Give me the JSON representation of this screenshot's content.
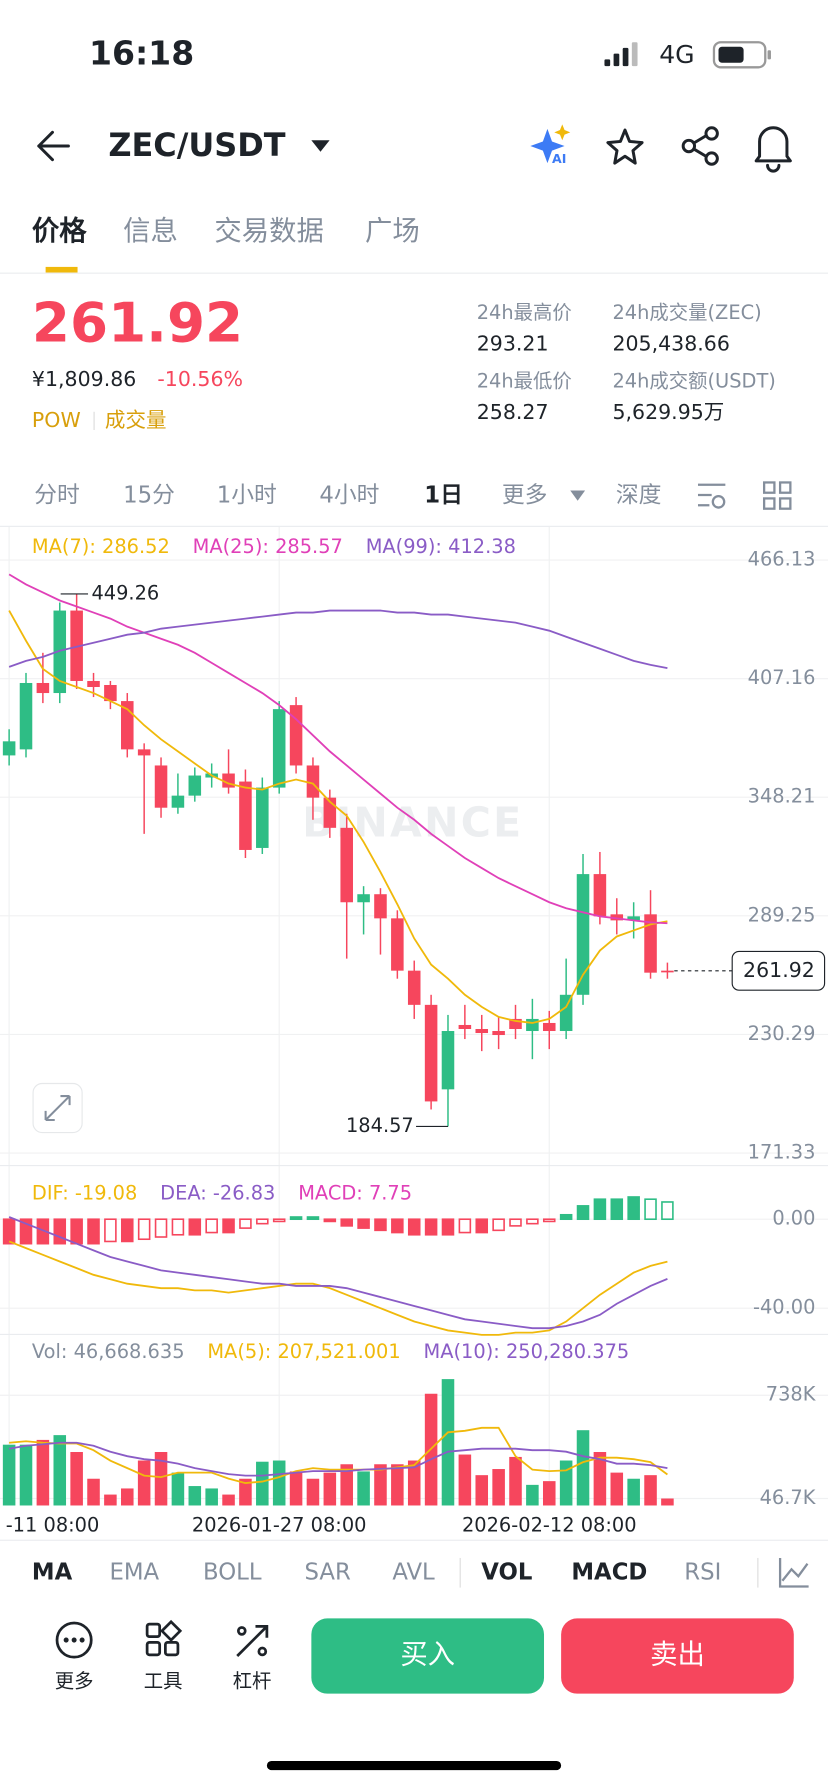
{
  "status": {
    "time": "16:18",
    "network": "4G"
  },
  "header": {
    "pair": "ZEC/USDT"
  },
  "tabs": [
    "价格",
    "信息",
    "交易数据",
    "广场"
  ],
  "ticker": {
    "price": "261.92",
    "cny": "¥1,809.86",
    "change": "-10.56%",
    "tags": [
      "POW",
      "成交量"
    ],
    "stats": [
      {
        "label": "24h最高价",
        "value": "293.21"
      },
      {
        "label": "24h成交量(ZEC)",
        "value": "205,438.66"
      },
      {
        "label": "24h最低价",
        "value": "258.27"
      },
      {
        "label": "24h成交额(USDT)",
        "value": "5,629.95万"
      }
    ]
  },
  "intervals": [
    "分时",
    "15分",
    "1小时",
    "4小时",
    "1日",
    "更多",
    "深度"
  ],
  "chart_data": {
    "type": "candlestick",
    "watermark": "BINANCE",
    "up_color": "#2ebd85",
    "down_color": "#f6465d",
    "categories": [
      "-11 08:00",
      null,
      null,
      null,
      null,
      null,
      null,
      null,
      null,
      null,
      null,
      null,
      null,
      null,
      null,
      null,
      "2026-01-27 08:00",
      null,
      null,
      null,
      null,
      null,
      null,
      null,
      null,
      null,
      null,
      null,
      null,
      null,
      null,
      null,
      "2026-02-12 08:00",
      null,
      null,
      null,
      null,
      null,
      null,
      null
    ],
    "open": [
      369,
      372,
      405,
      400,
      441,
      406,
      404,
      396,
      372,
      364,
      343,
      349,
      358,
      360,
      356,
      323,
      353,
      394,
      364,
      348,
      333,
      296,
      300,
      288,
      262,
      245,
      203,
      235,
      233,
      232,
      238,
      232,
      236,
      232,
      250,
      310,
      290,
      287,
      290,
      262
    ],
    "high": [
      382,
      410,
      420,
      445,
      449.26,
      410,
      406,
      400,
      375,
      368,
      360,
      363,
      365,
      372,
      362,
      358,
      396,
      398,
      368,
      352,
      340,
      304,
      303,
      292,
      267,
      250,
      240,
      245,
      240,
      239,
      245,
      248,
      242,
      268,
      320,
      321,
      298,
      296,
      302,
      266
    ],
    "low": [
      364,
      368,
      395,
      395,
      402,
      398,
      392,
      368,
      330,
      338,
      340,
      346,
      353,
      350,
      318,
      320,
      350,
      360,
      337,
      328,
      268,
      280,
      270,
      258,
      238,
      193,
      184.57,
      228,
      222,
      223,
      228,
      218,
      223,
      228,
      245,
      285,
      280,
      278,
      258,
      258
    ],
    "close": [
      376,
      405,
      400,
      441,
      406,
      403,
      396,
      372,
      369,
      343,
      349,
      359,
      360,
      353,
      322,
      353,
      392,
      364,
      348,
      333,
      296,
      300,
      288,
      262,
      245,
      197,
      232,
      233,
      231,
      230,
      233,
      238,
      232,
      250,
      310,
      289,
      287,
      289,
      261,
      261.92
    ],
    "max_label": "449.26",
    "min_label": "184.57",
    "last_label": "261.92",
    "ylim": [
      165.09,
      482.57
    ],
    "yticks": [
      466.13,
      407.16,
      348.21,
      289.25,
      230.29,
      171.33
    ],
    "grid": true,
    "series": [
      {
        "name": "MA(7): 286.52",
        "color": "#f0b90b",
        "values": [
          441,
          426,
          412,
          406,
          403,
          400,
          396,
          392,
          384,
          377,
          371,
          365,
          359,
          355,
          353,
          352,
          355,
          357,
          355,
          346,
          339,
          326,
          311,
          295,
          278,
          265,
          258,
          250,
          244,
          239,
          237,
          236,
          238,
          244,
          260,
          272,
          279,
          282,
          285,
          286.52
        ]
      },
      {
        "name": "MA(25): 285.57",
        "color": "#e040b8",
        "values": [
          459,
          454,
          450,
          446,
          443,
          440,
          437,
          433,
          430,
          427,
          424,
          420,
          415,
          410,
          405,
          400,
          394,
          387,
          379,
          371,
          364,
          357,
          350,
          343,
          337,
          330,
          324,
          318,
          313,
          308,
          304,
          300,
          296,
          293,
          291,
          289,
          288,
          287,
          286,
          285.57
        ]
      },
      {
        "name": "MA(99): 412.38",
        "color": "#8a5cc6",
        "values": [
          413,
          416,
          418,
          421,
          423,
          425,
          427,
          429,
          430,
          432,
          433,
          434,
          435,
          436,
          437,
          438,
          439,
          440,
          440,
          441,
          441,
          441,
          441,
          440,
          440,
          439,
          439,
          438,
          437,
          436,
          435,
          433,
          431,
          428,
          425,
          422,
          419,
          416,
          414,
          412.38
        ]
      }
    ],
    "macd": {
      "ylim": [
        -51.79,
        22.56
      ],
      "yticks": [
        {
          "value": 0,
          "label": "0.00"
        },
        {
          "value": -40,
          "label": "-40.00"
        }
      ],
      "series": [
        {
          "name": "DIF: -19.08",
          "color": "#f0b90b",
          "values": [
            -10,
            -13,
            -16,
            -19,
            -22,
            -25,
            -27,
            -29,
            -30,
            -31,
            -31,
            -32,
            -32,
            -33,
            -32,
            -31,
            -30,
            -29,
            -29,
            -31,
            -34,
            -37,
            -40,
            -43,
            -46,
            -48,
            -50,
            -51,
            -52,
            -52,
            -51,
            -51,
            -50,
            -46,
            -40,
            -34,
            -29,
            -24,
            -21,
            -19.08
          ]
        },
        {
          "name": "DEA: -26.83",
          "color": "#8a5cc6",
          "values": [
            1,
            -2,
            -5,
            -8,
            -11,
            -14,
            -17,
            -19,
            -21,
            -23,
            -24,
            -25,
            -26,
            -27,
            -28,
            -29,
            -29,
            -30,
            -30,
            -30,
            -31,
            -33,
            -35,
            -37,
            -39,
            -41,
            -43,
            -45,
            -46,
            -47,
            -48,
            -49,
            -49,
            -48,
            -46,
            -43,
            -38,
            -34,
            -30,
            -26.83
          ]
        }
      ],
      "histogram": {
        "name": "MACD: 7.75",
        "color": "#e040b8",
        "values": [
          -11,
          -11,
          -11,
          -11,
          -11,
          -11,
          -10,
          -10,
          -9,
          -8,
          -7,
          -7,
          -6,
          -6,
          -4,
          -2,
          -1,
          1,
          1,
          -1,
          -3,
          -4,
          -5,
          -6,
          -7,
          -7,
          -7,
          -6,
          -6,
          -5,
          -3,
          -2,
          -1,
          2,
          6,
          9,
          9,
          10,
          9,
          7.75
        ]
      }
    },
    "volume": {
      "name": "Vol: 46,668.635",
      "ylim": [
        0,
        1130000
      ],
      "yticks": [
        {
          "value": 738000,
          "label": "738K"
        },
        {
          "value": 46700,
          "label": "46.7K"
        }
      ],
      "values": [
        407000,
        407000,
        439000,
        471000,
        358000,
        179000,
        73000,
        114000,
        301000,
        358000,
        220000,
        130000,
        114000,
        73000,
        179000,
        293000,
        301000,
        228000,
        179000,
        220000,
        276000,
        228000,
        276000,
        276000,
        301000,
        748000,
        846000,
        341000,
        203000,
        244000,
        325000,
        138000,
        163000,
        301000,
        504000,
        358000,
        220000,
        179000,
        203000,
        46668.635
      ],
      "series": [
        {
          "name": "MA(5): 207,521.001",
          "color": "#f0b90b",
          "values": [
            420000,
            430000,
            420000,
            415000,
            415000,
            370000,
            300000,
            250000,
            200000,
            190000,
            220000,
            220000,
            220000,
            180000,
            150000,
            160000,
            190000,
            230000,
            250000,
            240000,
            240000,
            240000,
            240000,
            255000,
            270000,
            380000,
            490000,
            500000,
            520000,
            520000,
            330000,
            240000,
            230000,
            235000,
            290000,
            320000,
            320000,
            310000,
            290000,
            207521.001
          ]
        },
        {
          "name": "MA(10): 250,280.375",
          "color": "#8a5cc6",
          "values": [
            380000,
            400000,
            410000,
            420000,
            420000,
            400000,
            360000,
            330000,
            310000,
            300000,
            280000,
            250000,
            230000,
            210000,
            200000,
            200000,
            210000,
            220000,
            230000,
            230000,
            230000,
            240000,
            245000,
            250000,
            255000,
            310000,
            360000,
            370000,
            380000,
            380000,
            380000,
            370000,
            370000,
            360000,
            330000,
            310000,
            280000,
            280000,
            270000,
            250280.375
          ]
        }
      ]
    }
  },
  "indicators": [
    "MA",
    "EMA",
    "BOLL",
    "SAR",
    "AVL",
    "VOL",
    "MACD",
    "RSI"
  ],
  "actions": [
    "更多",
    "工具",
    "杠杆"
  ],
  "buy": "买入",
  "sell": "卖出"
}
